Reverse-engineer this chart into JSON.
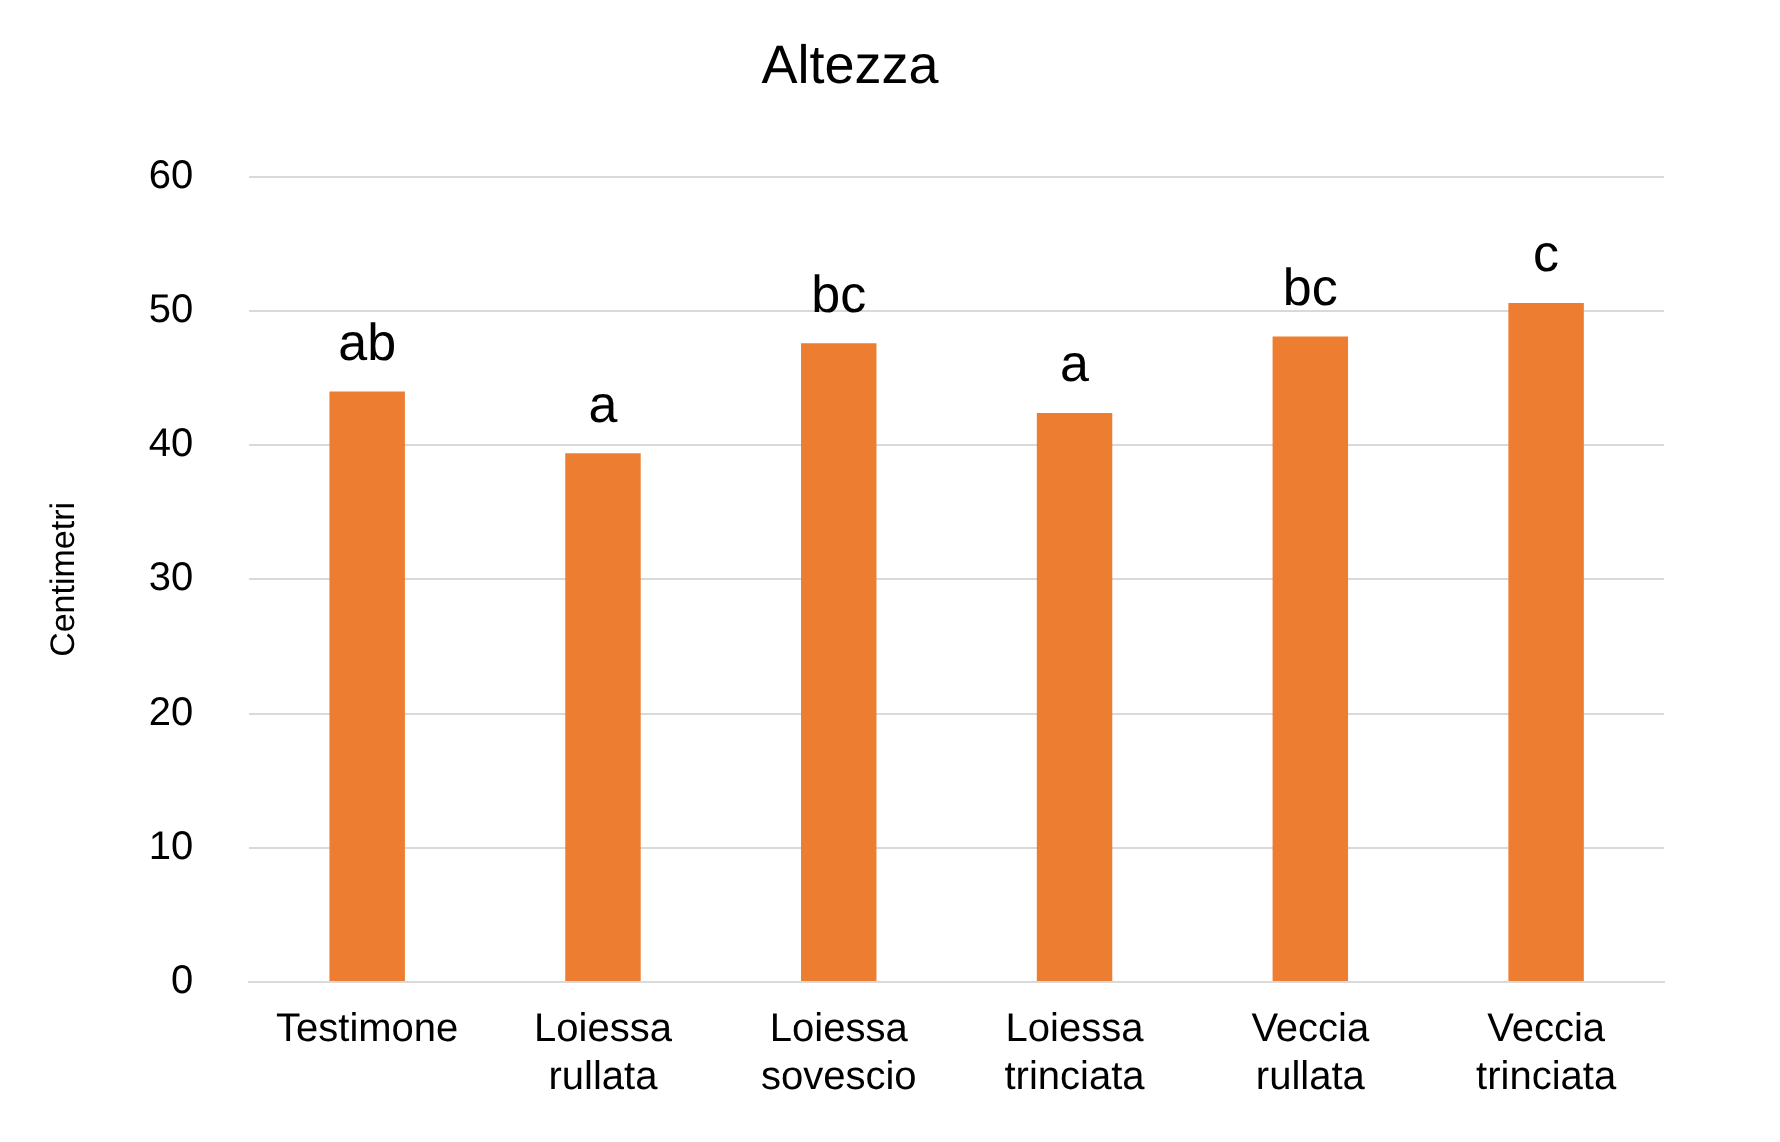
{
  "chart_data": {
    "type": "bar",
    "title": "Altezza",
    "ylabel": "Centimetri",
    "categories": [
      "Testimone",
      "Loiessa rullata",
      "Loiessa sovescio",
      "Loiessa trinciata",
      "Veccia rullata",
      "Veccia trinciata"
    ],
    "values": [
      44,
      39.4,
      47.6,
      42.4,
      48.1,
      50.6
    ],
    "value_labels": [
      "ab",
      "a",
      "bc",
      "a",
      "bc",
      "c"
    ],
    "color": "#ed7d31",
    "ylim": [
      0,
      60
    ],
    "yticks": [
      0,
      10,
      20,
      30,
      40,
      50,
      60
    ],
    "grid": "y",
    "legend": false
  }
}
